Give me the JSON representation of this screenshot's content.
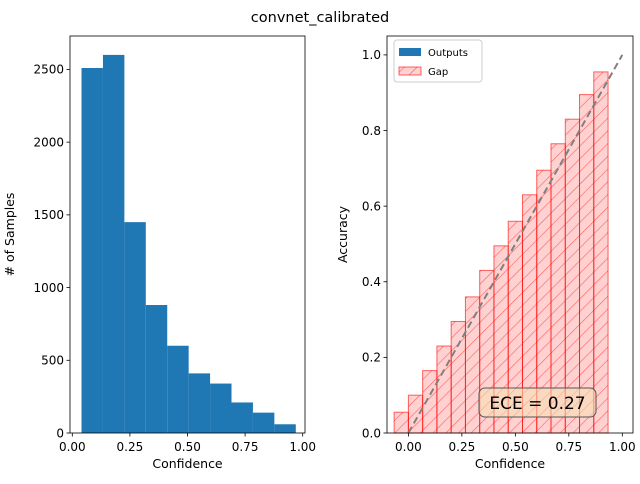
{
  "figure": {
    "title": "convnet_calibrated"
  },
  "chart_data": [
    {
      "type": "bar",
      "xlabel": "Confidence",
      "ylabel": "# of Samples",
      "xlim": [
        -0.01,
        1.01
      ],
      "ylim": [
        0,
        2730
      ],
      "xticks": [
        0.0,
        0.25,
        0.5,
        0.75,
        1.0
      ],
      "xtick_labels": [
        "0.00",
        "0.25",
        "0.50",
        "0.75",
        "1.00"
      ],
      "yticks": [
        0,
        500,
        1000,
        1500,
        2000,
        2500
      ],
      "ytick_labels": [
        "0",
        "500",
        "1000",
        "1500",
        "2000",
        "2500"
      ],
      "bin_edges": [
        0.04,
        0.133,
        0.226,
        0.319,
        0.412,
        0.505,
        0.598,
        0.691,
        0.784,
        0.877,
        0.97
      ],
      "values": [
        2510,
        2600,
        1450,
        880,
        600,
        410,
        340,
        210,
        140,
        60
      ],
      "color": "#1f77b4"
    },
    {
      "type": "bar",
      "xlabel": "Confidence",
      "ylabel": "Accuracy",
      "xlim": [
        -0.1,
        1.05
      ],
      "ylim": [
        0,
        1.05
      ],
      "xticks": [
        0.0,
        0.25,
        0.5,
        0.75,
        1.0
      ],
      "xtick_labels": [
        "0.00",
        "0.25",
        "0.50",
        "0.75",
        "1.00"
      ],
      "yticks": [
        0.0,
        0.2,
        0.4,
        0.6,
        0.8,
        1.0
      ],
      "ytick_labels": [
        "0.0",
        "0.2",
        "0.4",
        "0.6",
        "0.8",
        "1.0"
      ],
      "bin_width": 0.0667,
      "bin_centers": [
        -0.0333,
        0.0333,
        0.1,
        0.1667,
        0.2333,
        0.3,
        0.3667,
        0.4333,
        0.5,
        0.5667,
        0.6333,
        0.7,
        0.7667,
        0.8333,
        0.9,
        0.9667
      ],
      "series": [
        {
          "name": "Outputs",
          "color": "#1f77b4",
          "values": [
            0,
            0,
            0,
            0,
            0,
            0,
            0,
            0,
            0,
            0,
            0,
            0,
            0,
            0,
            0,
            0
          ]
        },
        {
          "name": "Gap",
          "color": "#ff0000",
          "values": [
            0.055,
            0.1,
            0.165,
            0.23,
            0.295,
            0.36,
            0.43,
            0.495,
            0.56,
            0.63,
            0.695,
            0.765,
            0.83,
            0.895,
            0.955,
            0.0
          ]
        }
      ],
      "reference_line": {
        "from": [
          0,
          0
        ],
        "to": [
          1,
          1
        ],
        "color": "#808080",
        "style": "dashed"
      },
      "legend_position": "top-left",
      "annotation": "ECE = 0.27"
    }
  ]
}
